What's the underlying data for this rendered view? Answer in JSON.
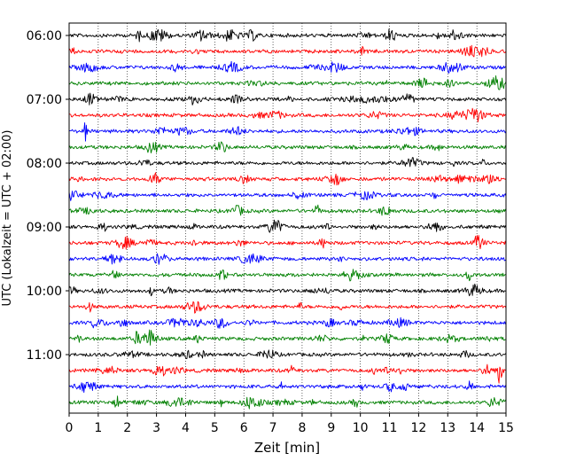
{
  "chart_data": {
    "type": "line",
    "title": "",
    "xlabel": "Zeit  [min]",
    "ylabel": "UTC (Lokalzeit = UTC + 02:00)",
    "xlim": [
      0,
      15
    ],
    "x_ticks": [
      0,
      1,
      2,
      3,
      4,
      5,
      6,
      7,
      8,
      9,
      10,
      11,
      12,
      13,
      14,
      15
    ],
    "y_tick_labels": [
      "06:00",
      "07:00",
      "08:00",
      "09:00",
      "10:00",
      "11:00"
    ],
    "trace_count": 24,
    "trace_interval_min": 15,
    "first_trace": "06:00",
    "last_trace": "11:45",
    "color_cycle": [
      "#000000",
      "#ff0000",
      "#0000ff",
      "#008000"
    ],
    "grid": {
      "x": true,
      "y": false,
      "style": "dotted"
    },
    "legend": "none"
  }
}
